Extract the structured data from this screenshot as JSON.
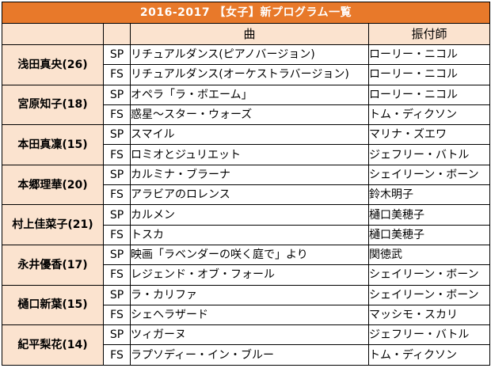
{
  "table": {
    "title": "2016-2017 【女子】新プログラム一覧",
    "headers": {
      "skater": "",
      "type": "",
      "song": "曲",
      "choreographer": "振付師"
    },
    "skaters": [
      {
        "name": "浅田真央(26)",
        "programs": [
          {
            "type": "SP",
            "song": "リチュアルダンス(ピアノバージョン)",
            "choreographer": "ローリー・ニコル"
          },
          {
            "type": "FS",
            "song": "リチュアルダンス(オーケストラバージョン)",
            "choreographer": "ローリー・ニコル"
          }
        ]
      },
      {
        "name": "宮原知子(18)",
        "programs": [
          {
            "type": "SP",
            "song": "オペラ「ラ・ボエーム」",
            "choreographer": "ローリー・ニコル"
          },
          {
            "type": "FS",
            "song": "惑星～スター・ウォーズ",
            "choreographer": "トム・ディクソン"
          }
        ]
      },
      {
        "name": "本田真凜(15)",
        "programs": [
          {
            "type": "SP",
            "song": "スマイル",
            "choreographer": "マリナ・ズエワ"
          },
          {
            "type": "FS",
            "song": "ロミオとジュリエット",
            "choreographer": "ジェフリー・バトル"
          }
        ]
      },
      {
        "name": "本郷理華(20)",
        "programs": [
          {
            "type": "SP",
            "song": "カルミナ・ブラーナ",
            "choreographer": "シェイリーン・ボーン"
          },
          {
            "type": "FS",
            "song": "アラビアのロレンス",
            "choreographer": "鈴木明子"
          }
        ]
      },
      {
        "name": "村上佳菜子(21)",
        "programs": [
          {
            "type": "SP",
            "song": "カルメン",
            "choreographer": "樋口美穂子"
          },
          {
            "type": "FS",
            "song": "トスカ",
            "choreographer": "樋口美穂子"
          }
        ]
      },
      {
        "name": "永井優香(17)",
        "programs": [
          {
            "type": "SP",
            "song": "映画「ラベンダーの咲く庭で」より",
            "choreographer": "関徳武"
          },
          {
            "type": "FS",
            "song": "レジェンド・オブ・フォール",
            "choreographer": "シェイリーン・ボーン"
          }
        ]
      },
      {
        "name": "樋口新葉(15)",
        "programs": [
          {
            "type": "SP",
            "song": "ラ・カリファ",
            "choreographer": "シェイリーン・ボーン"
          },
          {
            "type": "FS",
            "song": "シェヘラザード",
            "choreographer": "マッシモ・スカリ"
          }
        ]
      },
      {
        "name": "紀平梨花(14)",
        "programs": [
          {
            "type": "SP",
            "song": "ツィガーヌ",
            "choreographer": "ジェフリー・バトル"
          },
          {
            "type": "FS",
            "song": "ラプソディー・イン・ブルー",
            "choreographer": "トム・ディクソン"
          }
        ]
      }
    ]
  }
}
